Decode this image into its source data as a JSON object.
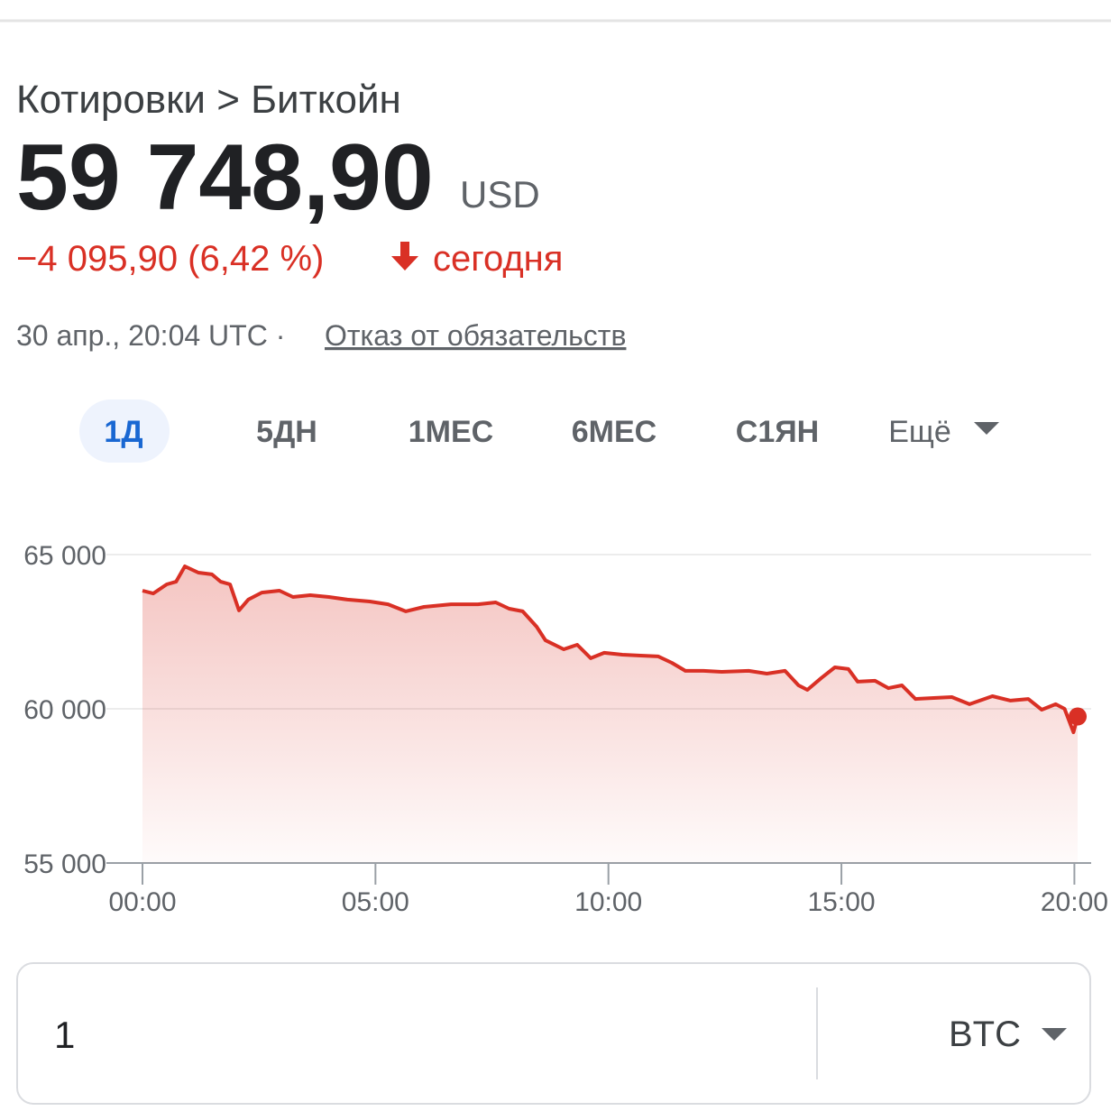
{
  "header": {
    "breadcrumb": "Котировки > Биткойн",
    "price": "59 748,90",
    "currency": "USD",
    "change": "−4 095,90 (6,42 %)",
    "period": "сегодня",
    "timestamp": "30 апр., 20:04 UTC ·",
    "disclaimer": "Отказ от обязательств"
  },
  "tabs": [
    "1Д",
    "5ДН",
    "1МЕС",
    "6МЕС",
    "С1ЯН",
    "Ещё"
  ],
  "chart_data": {
    "type": "line",
    "color": "#d93025",
    "grid": true,
    "x": [
      0,
      0.23,
      0.52,
      0.72,
      0.91,
      1.2,
      1.49,
      1.68,
      1.88,
      2.07,
      2.27,
      2.56,
      2.94,
      3.23,
      3.6,
      4.0,
      4.4,
      4.88,
      5.27,
      5.65,
      6.04,
      6.62,
      7.2,
      7.58,
      7.87,
      8.16,
      8.46,
      8.65,
      9.04,
      9.33,
      9.62,
      9.91,
      10.3,
      10.69,
      11.07,
      11.36,
      11.65,
      12.04,
      12.43,
      13.01,
      13.4,
      13.79,
      14.08,
      14.27,
      14.57,
      14.86,
      15.15,
      15.35,
      15.72,
      16.01,
      16.3,
      16.59,
      16.98,
      17.37,
      17.75,
      18.24,
      18.63,
      19.01,
      19.3,
      19.6,
      19.79,
      19.98,
      20.07
    ],
    "values": [
      63830,
      63740,
      64035,
      64120,
      64620,
      64415,
      64360,
      64120,
      64035,
      63190,
      63540,
      63770,
      63830,
      63625,
      63685,
      63625,
      63540,
      63480,
      63390,
      63160,
      63305,
      63390,
      63390,
      63450,
      63245,
      63160,
      62660,
      62220,
      61930,
      62075,
      61640,
      61815,
      61755,
      61725,
      61700,
      61490,
      61230,
      61230,
      61200,
      61230,
      61140,
      61230,
      60760,
      60615,
      61000,
      61345,
      61290,
      60880,
      60910,
      60670,
      60760,
      60320,
      60350,
      60380,
      60150,
      60410,
      60265,
      60320,
      59970,
      60150,
      60000,
      59240,
      59750
    ],
    "xlim": [
      0,
      20.36
    ],
    "ylim": [
      55000,
      65000
    ],
    "xticks": [
      {
        "value": 0,
        "label": "00:00"
      },
      {
        "value": 5,
        "label": "05:00"
      },
      {
        "value": 10,
        "label": "10:00"
      },
      {
        "value": 15,
        "label": "15:00"
      },
      {
        "value": 20,
        "label": "20:00"
      }
    ],
    "yticks": [
      {
        "value": 55000,
        "label": "55 000"
      },
      {
        "value": 60000,
        "label": "60 000"
      },
      {
        "value": 65000,
        "label": "65 000"
      }
    ]
  },
  "converter": {
    "amount": "1",
    "currency": "BTC"
  }
}
